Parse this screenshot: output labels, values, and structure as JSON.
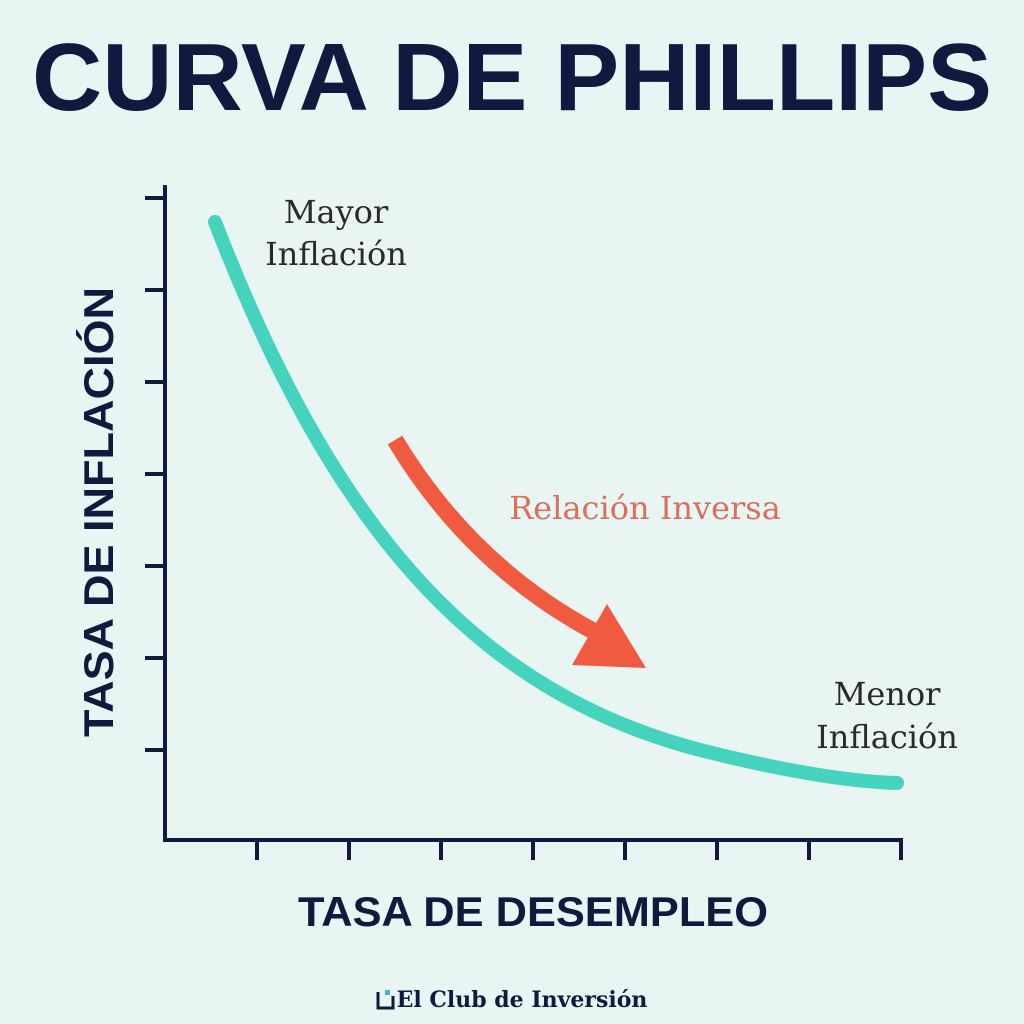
{
  "header": {
    "title": "CURVA DE PHILLIPS"
  },
  "axes": {
    "y_label": "TASA DE INFLACIÓN",
    "x_label": "TASA DE DESEMPLEO"
  },
  "annotations": {
    "top": [
      "Mayor",
      "Inflación"
    ],
    "arrow": "Relación Inversa",
    "bottom": [
      "Menor",
      "Inflación"
    ]
  },
  "footer": {
    "brand": "El Club de Inversión"
  }
}
